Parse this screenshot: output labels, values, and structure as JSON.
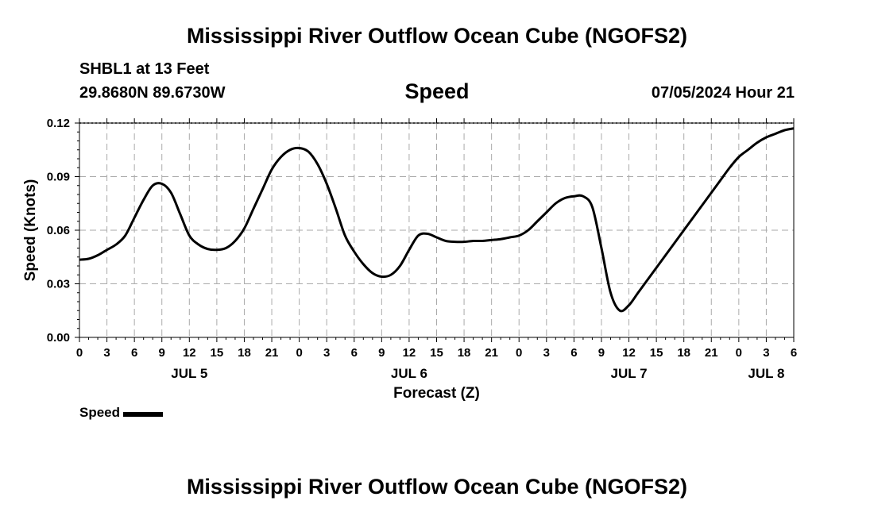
{
  "header": {
    "title": "Mississippi River Outflow Ocean Cube (NGOFS2)",
    "station": "SHBL1 at 13 Feet",
    "coords": "29.8680N  89.6730W",
    "variable": "Speed",
    "datetime": "07/05/2024 Hour 21"
  },
  "footer": {
    "title": "Mississippi River Outflow Ocean Cube (NGOFS2)"
  },
  "legend": {
    "label": "Speed"
  },
  "colors": {
    "line": "#000000",
    "grid": "#aaaaaa"
  },
  "chart_data": {
    "type": "line",
    "title": "Speed",
    "xlabel": "Forecast (Z)",
    "ylabel": "Speed (Knots)",
    "xlim": [
      0,
      78
    ],
    "ylim": [
      0,
      0.12
    ],
    "ytick_values": [
      0,
      0.03,
      0.06,
      0.09,
      0.12
    ],
    "ytick_labels": [
      "0.00",
      "0.03",
      "0.06",
      "0.09",
      "0.12"
    ],
    "xtick_values": [
      0,
      3,
      6,
      9,
      12,
      15,
      18,
      21,
      24,
      27,
      30,
      33,
      36,
      39,
      42,
      45,
      48,
      51,
      54,
      57,
      60,
      63,
      66,
      69,
      72,
      75,
      78
    ],
    "xtick_labels": [
      "0",
      "3",
      "6",
      "9",
      "12",
      "15",
      "18",
      "21",
      "0",
      "3",
      "6",
      "9",
      "12",
      "15",
      "18",
      "21",
      "0",
      "3",
      "6",
      "9",
      "12",
      "15",
      "18",
      "21",
      "0",
      "3",
      "6"
    ],
    "day_labels": [
      {
        "x": 12,
        "label": "JUL 5"
      },
      {
        "x": 36,
        "label": "JUL 6"
      },
      {
        "x": 60,
        "label": "JUL 7"
      },
      {
        "x": 75,
        "label": "JUL 8"
      }
    ],
    "grid": true,
    "series": [
      {
        "name": "Speed",
        "x": [
          0,
          1,
          2,
          3,
          4,
          5,
          6,
          7,
          8,
          9,
          10,
          11,
          12,
          13,
          14,
          15,
          16,
          17,
          18,
          19,
          20,
          21,
          22,
          23,
          24,
          25,
          26,
          27,
          28,
          29,
          30,
          31,
          32,
          33,
          34,
          35,
          36,
          37,
          38,
          39,
          40,
          41,
          42,
          43,
          44,
          45,
          46,
          47,
          48,
          49,
          50,
          51,
          52,
          53,
          54,
          55,
          56,
          57,
          58,
          59,
          60,
          61,
          62,
          63,
          64,
          65,
          66,
          67,
          68,
          69,
          70,
          71,
          72,
          73,
          74,
          75,
          76,
          77,
          78
        ],
        "values": [
          0.0435,
          0.044,
          0.046,
          0.049,
          0.052,
          0.057,
          0.067,
          0.077,
          0.085,
          0.086,
          0.081,
          0.069,
          0.057,
          0.052,
          0.0495,
          0.049,
          0.05,
          0.054,
          0.061,
          0.072,
          0.083,
          0.094,
          0.101,
          0.105,
          0.106,
          0.104,
          0.097,
          0.086,
          0.072,
          0.057,
          0.048,
          0.041,
          0.036,
          0.034,
          0.035,
          0.04,
          0.049,
          0.057,
          0.058,
          0.056,
          0.054,
          0.0535,
          0.0535,
          0.054,
          0.054,
          0.0545,
          0.055,
          0.056,
          0.057,
          0.06,
          0.065,
          0.07,
          0.075,
          0.078,
          0.079,
          0.079,
          0.073,
          0.05,
          0.025,
          0.015,
          0.018,
          0.025,
          0.032,
          0.039,
          0.046,
          0.053,
          0.06,
          0.067,
          0.074,
          0.081,
          0.088,
          0.095,
          0.101,
          0.105,
          0.109,
          0.112,
          0.114,
          0.116,
          0.117
        ]
      }
    ]
  }
}
